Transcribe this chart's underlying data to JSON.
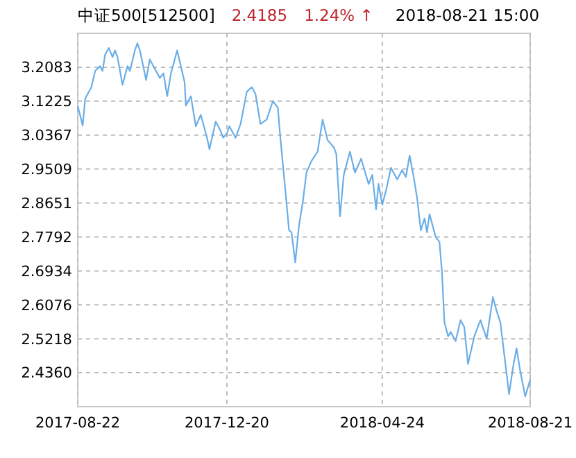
{
  "chart_data": {
    "type": "line",
    "title": "中证500[512500]",
    "annotations": [
      "2.4185",
      "1.24% ↑",
      "2018-08-21 15:00"
    ],
    "xlim": [
      "2017-08-22",
      "2018-08-21"
    ],
    "xticks": [
      "2017-08-22",
      "2017-12-20",
      "2018-04-24",
      "2018-08-21"
    ],
    "ylim": [
      2.3502,
      3.2941
    ],
    "yticks": [
      {
        "value": 2.436,
        "label": "2.4360"
      },
      2.5218,
      2.6076,
      2.6934,
      2.7792,
      2.8651,
      2.9509,
      3.0367,
      3.1225,
      3.2083
    ],
    "grid": true,
    "line_style": "solid",
    "marker": "none",
    "x": [
      "2017-08-22",
      "2017-08-26",
      "2017-08-28",
      "2017-09-02",
      "2017-09-05",
      "2017-09-09",
      "2017-09-11",
      "2017-09-13",
      "2017-09-16",
      "2017-09-19",
      "2017-09-21",
      "2017-09-23",
      "2017-09-27",
      "2017-10-01",
      "2017-10-03",
      "2017-10-07",
      "2017-10-09",
      "2017-10-11",
      "2017-10-16",
      "2017-10-19",
      "2017-10-24",
      "2017-10-27",
      "2017-10-30",
      "2017-11-02",
      "2017-11-05",
      "2017-11-10",
      "2017-11-16",
      "2017-11-17",
      "2017-11-21",
      "2017-11-25",
      "2017-11-29",
      "2017-12-04",
      "2017-12-06",
      "2017-12-11",
      "2017-12-15",
      "2017-12-17",
      "2017-12-20",
      "2017-12-22",
      "2017-12-27",
      "2017-12-31",
      "2018-01-05",
      "2018-01-09",
      "2018-01-12",
      "2018-01-16",
      "2018-01-21",
      "2018-01-26",
      "2018-01-30",
      "2018-02-01",
      "2018-02-04",
      "2018-02-08",
      "2018-02-10",
      "2018-02-13",
      "2018-02-16",
      "2018-02-19",
      "2018-02-22",
      "2018-02-26",
      "2018-03-03",
      "2018-03-07",
      "2018-03-11",
      "2018-03-16",
      "2018-03-18",
      "2018-03-21",
      "2018-03-24",
      "2018-03-29",
      "2018-04-02",
      "2018-04-07",
      "2018-04-13",
      "2018-04-16",
      "2018-04-19",
      "2018-04-21",
      "2018-04-24",
      "2018-04-27",
      "2018-05-01",
      "2018-05-06",
      "2018-05-10",
      "2018-05-13",
      "2018-05-16",
      "2018-05-19",
      "2018-05-22",
      "2018-05-25",
      "2018-05-28",
      "2018-05-30",
      "2018-06-01",
      "2018-06-06",
      "2018-06-09",
      "2018-06-11",
      "2018-06-13",
      "2018-06-16",
      "2018-06-18",
      "2018-06-22",
      "2018-06-26",
      "2018-06-29",
      "2018-07-02",
      "2018-07-07",
      "2018-07-12",
      "2018-07-17",
      "2018-07-22",
      "2018-07-25",
      "2018-07-28",
      "2018-08-04",
      "2018-08-07",
      "2018-08-10",
      "2018-08-13",
      "2018-08-17",
      "2018-08-21"
    ],
    "series": [
      {
        "color": "#6aaee8",
        "values": [
          3.111,
          3.061,
          3.129,
          3.158,
          3.199,
          3.211,
          3.199,
          3.24,
          3.257,
          3.234,
          3.251,
          3.234,
          3.164,
          3.211,
          3.199,
          3.251,
          3.269,
          3.251,
          3.176,
          3.228,
          3.199,
          3.181,
          3.193,
          3.135,
          3.193,
          3.251,
          3.17,
          3.111,
          3.135,
          3.059,
          3.088,
          3.03,
          3.001,
          3.071,
          3.047,
          3.03,
          3.041,
          3.059,
          3.03,
          3.065,
          3.146,
          3.158,
          3.141,
          3.065,
          3.076,
          3.123,
          3.106,
          3.03,
          2.931,
          2.796,
          2.791,
          2.715,
          2.808,
          2.866,
          2.942,
          2.971,
          2.995,
          3.076,
          3.024,
          3.006,
          2.989,
          2.831,
          2.936,
          2.995,
          2.942,
          2.977,
          2.913,
          2.936,
          2.849,
          2.913,
          2.861,
          2.896,
          2.954,
          2.925,
          2.948,
          2.931,
          2.985,
          2.936,
          2.878,
          2.796,
          2.826,
          2.791,
          2.837,
          2.779,
          2.767,
          2.691,
          2.563,
          2.528,
          2.539,
          2.516,
          2.569,
          2.551,
          2.458,
          2.528,
          2.569,
          2.522,
          2.627,
          2.592,
          2.563,
          2.382,
          2.446,
          2.498,
          2.44,
          2.376,
          2.4185
        ]
      }
    ]
  }
}
